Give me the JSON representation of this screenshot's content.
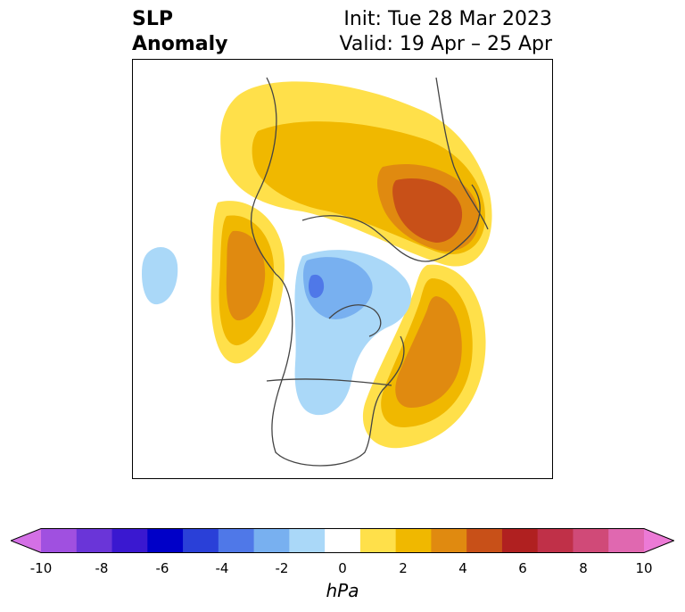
{
  "title": {
    "variable_line1": "SLP",
    "variable_line2": "Anomaly",
    "init": "Init: Tue 28 Mar 2023",
    "valid": "Valid: 19 Apr – 25 Apr"
  },
  "colorbar": {
    "unit": "hPa",
    "min": -10,
    "max": 10,
    "extend": "both",
    "ticks": [
      "-10",
      "-8",
      "-6",
      "-4",
      "-2",
      "0",
      "2",
      "4",
      "6",
      "8",
      "10"
    ],
    "colors": [
      "#d470e6",
      "#a050e0",
      "#6a35d8",
      "#3a18d0",
      "#0000c8",
      "#2a40d8",
      "#4f78e8",
      "#78b0f0",
      "#aad8f8",
      "#ffffff",
      "#ffe04a",
      "#f0b800",
      "#e08a10",
      "#c85018",
      "#b02020",
      "#c03048",
      "#d04a78",
      "#e068b0",
      "#ec7ad6"
    ]
  },
  "map": {
    "projection": "polar stereographic, North Pole",
    "field": "sea level pressure anomaly"
  }
}
